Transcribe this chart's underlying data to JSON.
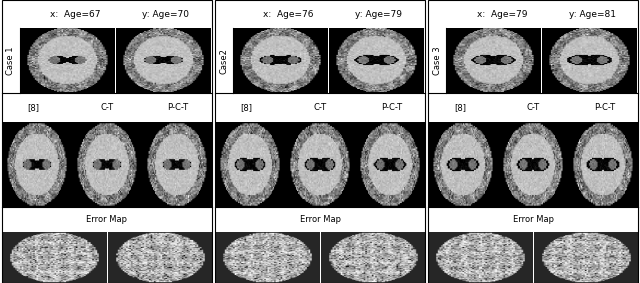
{
  "fig_width": 6.4,
  "fig_height": 2.83,
  "dpi": 100,
  "background_color": "#ffffff",
  "cases": [
    {
      "label": "Case 1",
      "x_age": "x:  Age=67",
      "y_age": "y: Age=70"
    },
    {
      "label": "Case2",
      "x_age": "x:  Age=76",
      "y_age": "y: Age=79"
    },
    {
      "label": "Case 3",
      "x_age": "x:  Age=79",
      "y_age": "y: Age=81"
    }
  ],
  "row2_labels": [
    "[8]",
    "C-T",
    "P-C-T"
  ],
  "row3_label": "Error Map",
  "border_color": "#000000",
  "text_color": "#000000",
  "title_fontsize": 6.5,
  "label_fontsize": 6.0,
  "case_label_fontsize": 6.0
}
